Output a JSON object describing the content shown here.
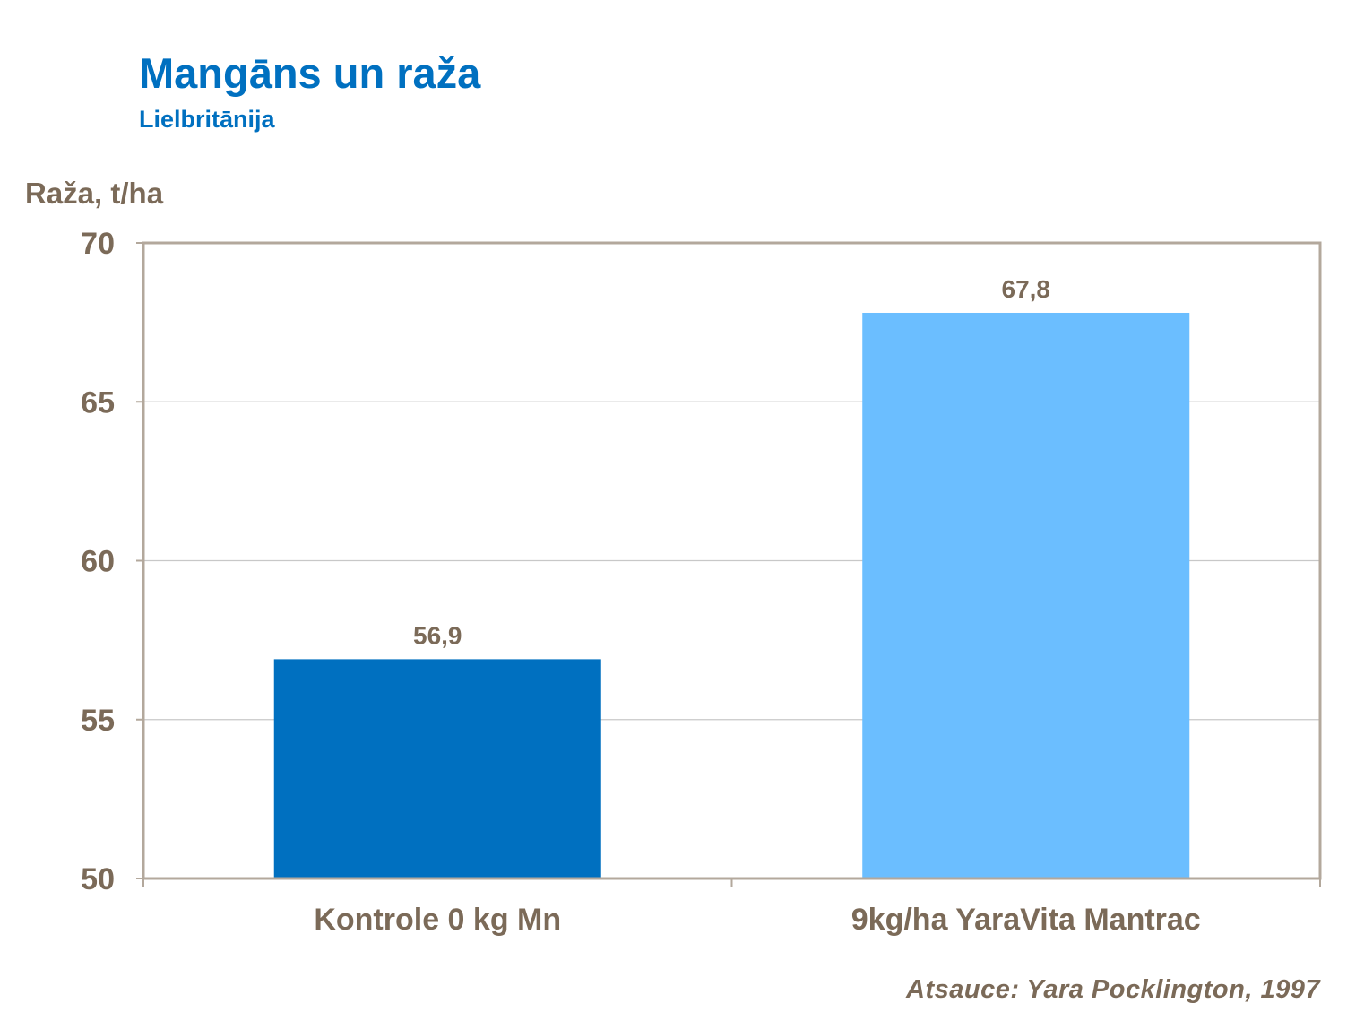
{
  "header": {
    "title": "Mangāns un raža",
    "subtitle": "Lielbritānija"
  },
  "footer": {
    "source": "Atsauce: Yara Pocklington, 1997"
  },
  "colors": {
    "title": "#0070C0",
    "text": "#7B6A58",
    "axis": "#B3A89C",
    "gridline": "#C8C8C8",
    "bar_control": "#0070C0",
    "bar_treatment": "#6BBEFF"
  },
  "chart_data": {
    "type": "bar",
    "title": "Mangāns un raža",
    "subtitle": "Lielbritānija",
    "ylabel": "Raža, t/ha",
    "xlabel": "",
    "categories": [
      "Kontrole 0 kg Mn",
      "9kg/ha YaraVita Mantrac"
    ],
    "values": [
      56.9,
      67.8
    ],
    "value_labels": [
      "56,9",
      "67,8"
    ],
    "bar_colors": [
      "#0070C0",
      "#6BBEFF"
    ],
    "ylim": [
      50,
      70
    ],
    "yticks": [
      50,
      55,
      60,
      65,
      70
    ],
    "grid": true,
    "legend": "none"
  }
}
